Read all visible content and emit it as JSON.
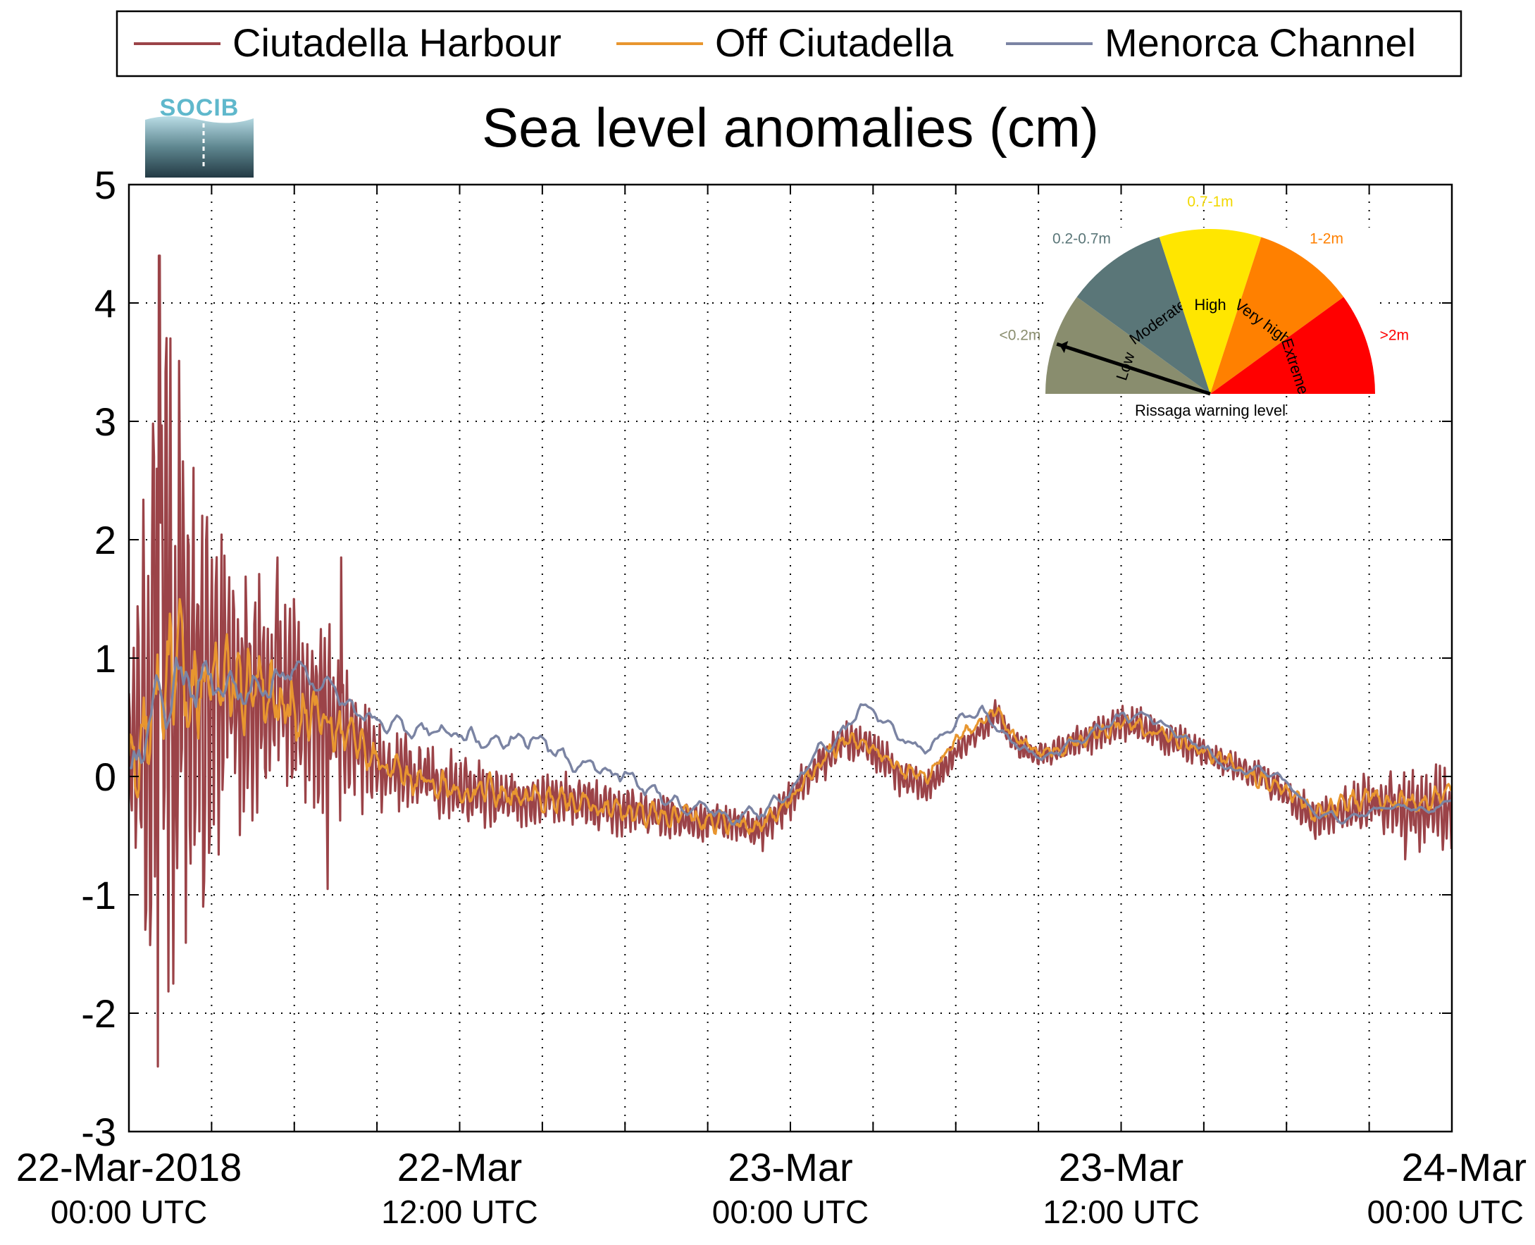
{
  "logo": {
    "text": "SOCIB"
  },
  "chart_data": {
    "type": "line",
    "title": "Sea level anomalies (cm)",
    "xlabel": "",
    "ylabel": "",
    "ylim": [
      -3,
      5
    ],
    "yticks": [
      -3,
      -2,
      -1,
      0,
      1,
      2,
      3,
      4,
      5
    ],
    "xlim_hours": [
      0,
      48
    ],
    "x_unit": "hours from 22-Mar-2018 00:00 UTC",
    "x_tick_step_hours": 3,
    "x_tick_labels": [
      {
        "at_hours": 0,
        "line1": "22-Mar-2018",
        "line2": "00:00 UTC"
      },
      {
        "at_hours": 12,
        "line1": "22-Mar",
        "line2": "12:00 UTC"
      },
      {
        "at_hours": 24,
        "line1": "23-Mar",
        "line2": "00:00 UTC"
      },
      {
        "at_hours": 36,
        "line1": "23-Mar",
        "line2": "12:00 UTC"
      },
      {
        "at_hours": 48,
        "line1": "24-Mar",
        "line2": "00:00 UTC"
      }
    ],
    "grid": true,
    "legend_position": "top",
    "series": [
      {
        "name": "Ciutadella Harbour",
        "color": "#9b4348",
        "baseline": [
          [
            0,
            0.3
          ],
          [
            1,
            0.8
          ],
          [
            2,
            0.9
          ],
          [
            3,
            0.8
          ],
          [
            4,
            0.7
          ],
          [
            5,
            0.7
          ],
          [
            6,
            0.6
          ],
          [
            7,
            0.5
          ],
          [
            8,
            0.4
          ],
          [
            9,
            0.1
          ],
          [
            10,
            0
          ],
          [
            12,
            -0.1
          ],
          [
            14,
            -0.2
          ],
          [
            16,
            -0.2
          ],
          [
            18,
            -0.3
          ],
          [
            20,
            -0.35
          ],
          [
            22,
            -0.4
          ],
          [
            23,
            -0.45
          ],
          [
            24,
            -0.2
          ],
          [
            25,
            0.1
          ],
          [
            26,
            0.3
          ],
          [
            27,
            0.25
          ],
          [
            28,
            0
          ],
          [
            29,
            -0.1
          ],
          [
            30,
            0.2
          ],
          [
            31,
            0.4
          ],
          [
            31.5,
            0.55
          ],
          [
            32,
            0.3
          ],
          [
            33,
            0.15
          ],
          [
            34,
            0.25
          ],
          [
            35,
            0.35
          ],
          [
            36,
            0.45
          ],
          [
            37,
            0.4
          ],
          [
            38,
            0.3
          ],
          [
            39,
            0.2
          ],
          [
            40,
            0.1
          ],
          [
            41,
            0
          ],
          [
            42,
            -0.15
          ],
          [
            43,
            -0.35
          ],
          [
            44,
            -0.3
          ],
          [
            45,
            -0.2
          ],
          [
            46,
            -0.25
          ],
          [
            47,
            -0.3
          ],
          [
            48,
            -0.25
          ]
        ],
        "amplitude": [
          [
            0,
            0.4
          ],
          [
            0.4,
            1.8
          ],
          [
            1.2,
            2.6
          ],
          [
            2.2,
            2.0
          ],
          [
            3,
            1.2
          ],
          [
            5,
            0.8
          ],
          [
            6.5,
            0.8
          ],
          [
            7.5,
            0.7
          ],
          [
            8.5,
            0.5
          ],
          [
            10,
            0.3
          ],
          [
            12,
            0.25
          ],
          [
            20,
            0.15
          ],
          [
            24,
            0.15
          ],
          [
            28,
            0.15
          ],
          [
            30,
            0.1
          ],
          [
            32,
            0.1
          ],
          [
            36,
            0.15
          ],
          [
            40,
            0.1
          ],
          [
            43,
            0.15
          ],
          [
            46,
            0.25
          ],
          [
            48,
            0.35
          ]
        ],
        "extremes": [
          [
            1.1,
            4.4
          ],
          [
            1.05,
            -2.45
          ],
          [
            1.5,
            3.7
          ],
          [
            1.6,
            -1.75
          ],
          [
            0.9,
            2.7
          ],
          [
            1.85,
            2.3
          ],
          [
            2.7,
            -1.1
          ],
          [
            5.4,
            1.85
          ],
          [
            7.7,
            1.85
          ],
          [
            7.2,
            -0.95
          ],
          [
            46.3,
            -0.7
          ]
        ]
      },
      {
        "name": "Off Ciutadella",
        "color": "#e8962f",
        "baseline": [
          [
            0,
            0.2
          ],
          [
            1,
            0.7
          ],
          [
            2,
            0.85
          ],
          [
            3,
            0.8
          ],
          [
            4,
            0.75
          ],
          [
            5,
            0.75
          ],
          [
            6,
            0.6
          ],
          [
            7,
            0.5
          ],
          [
            8,
            0.3
          ],
          [
            9,
            0.1
          ],
          [
            10,
            0
          ],
          [
            12,
            -0.1
          ],
          [
            14,
            -0.15
          ],
          [
            16,
            -0.2
          ],
          [
            18,
            -0.3
          ],
          [
            20,
            -0.35
          ],
          [
            22,
            -0.4
          ],
          [
            23,
            -0.4
          ],
          [
            24,
            -0.2
          ],
          [
            25,
            0.1
          ],
          [
            26,
            0.3
          ],
          [
            27,
            0.25
          ],
          [
            28,
            0.05
          ],
          [
            29,
            0
          ],
          [
            30,
            0.3
          ],
          [
            31,
            0.5
          ],
          [
            31.5,
            0.55
          ],
          [
            32,
            0.35
          ],
          [
            33,
            0.2
          ],
          [
            34,
            0.25
          ],
          [
            35,
            0.35
          ],
          [
            36,
            0.45
          ],
          [
            37,
            0.4
          ],
          [
            38,
            0.3
          ],
          [
            39,
            0.2
          ],
          [
            40,
            0.1
          ],
          [
            41,
            0
          ],
          [
            42,
            -0.1
          ],
          [
            43,
            -0.3
          ],
          [
            44,
            -0.25
          ],
          [
            45,
            -0.15
          ],
          [
            46,
            -0.2
          ],
          [
            47,
            -0.2
          ],
          [
            48,
            -0.1
          ]
        ],
        "amplitude": [
          [
            0,
            0.3
          ],
          [
            1,
            0.8
          ],
          [
            2,
            0.6
          ],
          [
            3,
            0.35
          ],
          [
            6,
            0.3
          ],
          [
            8,
            0.2
          ],
          [
            10,
            0.12
          ],
          [
            24,
            0.08
          ],
          [
            30,
            0.05
          ],
          [
            36,
            0.06
          ],
          [
            42,
            0.08
          ],
          [
            48,
            0.1
          ]
        ],
        "extremes": []
      },
      {
        "name": "Menorca Channel",
        "color": "#7b84a3",
        "baseline": [
          [
            0,
            0
          ],
          [
            0.5,
            0.3
          ],
          [
            1,
            0.6
          ],
          [
            2,
            0.8
          ],
          [
            3,
            0.8
          ],
          [
            4,
            0.75
          ],
          [
            5,
            0.8
          ],
          [
            6,
            0.9
          ],
          [
            7,
            0.8
          ],
          [
            8,
            0.6
          ],
          [
            9,
            0.45
          ],
          [
            10,
            0.4
          ],
          [
            12,
            0.35
          ],
          [
            14,
            0.3
          ],
          [
            15,
            0.3
          ],
          [
            16,
            0.1
          ],
          [
            17,
            0.05
          ],
          [
            18,
            0
          ],
          [
            19,
            -0.15
          ],
          [
            20,
            -0.25
          ],
          [
            21,
            -0.3
          ],
          [
            22,
            -0.35
          ],
          [
            23,
            -0.3
          ],
          [
            24,
            -0.1
          ],
          [
            25,
            0.2
          ],
          [
            26,
            0.4
          ],
          [
            26.5,
            0.6
          ],
          [
            27,
            0.55
          ],
          [
            28,
            0.3
          ],
          [
            29,
            0.25
          ],
          [
            30,
            0.45
          ],
          [
            31,
            0.55
          ],
          [
            32,
            0.3
          ],
          [
            33,
            0.15
          ],
          [
            34,
            0.25
          ],
          [
            35,
            0.4
          ],
          [
            36,
            0.5
          ],
          [
            37,
            0.5
          ],
          [
            38,
            0.35
          ],
          [
            39,
            0.25
          ],
          [
            40,
            0.05
          ],
          [
            41,
            0.05
          ],
          [
            42,
            -0.05
          ],
          [
            43,
            -0.3
          ],
          [
            44,
            -0.35
          ],
          [
            45,
            -0.3
          ],
          [
            46,
            -0.25
          ],
          [
            47,
            -0.3
          ],
          [
            48,
            -0.2
          ]
        ],
        "amplitude": [
          [
            0,
            0.2
          ],
          [
            2,
            0.3
          ],
          [
            4,
            0.15
          ],
          [
            8,
            0.08
          ],
          [
            48,
            0.03
          ]
        ],
        "extremes": []
      }
    ]
  },
  "gauge": {
    "caption": "Rissaga warning level",
    "sectors": [
      {
        "label": "Low",
        "range": "<0.2m",
        "color": "#898d6e",
        "range_color": "#898d6e"
      },
      {
        "label": "Moderate",
        "range": "0.2-0.7m",
        "color": "#5a7678",
        "range_color": "#5a7678"
      },
      {
        "label": "High",
        "range": "0.7-1m",
        "color": "#ffe600",
        "range_color": "#f2d800"
      },
      {
        "label": "Very high",
        "range": "1-2m",
        "color": "#ff8000",
        "range_color": "#ff8000"
      },
      {
        "label": "Extreme",
        "range": ">2m",
        "color": "#ff0000",
        "range_color": "#ff0000"
      }
    ],
    "needle_level": "Low"
  }
}
